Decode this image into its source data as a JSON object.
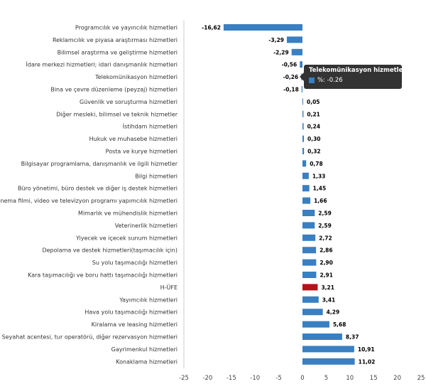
{
  "chart_data": {
    "type": "bar",
    "orientation": "horizontal",
    "categories": [
      "Programcılık ve yayıncılık hizmetleri",
      "Reklamcılık ve piyasa araştırması hizmetleri",
      "Bilimsel araştırma ve geliştirme hizmetleri",
      "İdare merkezi hizmetleri; idari danışmanlık hizmetleri",
      "Telekomünikasyon hizmetleri",
      "Bina ve çevre düzenleme (peyzaj) hizmetleri",
      "Güvenlik ve soruşturma hizmetleri",
      "Diğer mesleki, bilimsel ve teknik hizmetler",
      "İstihdam hizmetleri",
      "Hukuk ve muhasebe hizmetleri",
      "Posta ve kurye hizmetleri",
      "Bilgisayar programlama, danışmanlık ve ilgili hizmetler",
      "Bilgi hizmetleri",
      "Büro yönetimi, büro destek ve diğer iş destek hizmetleri",
      "Sinema filmi, video ve televizyon programı yapımcılık hizmetleri",
      "Mimarlık ve mühendislik hizmetleri",
      "Veterinerlik hizmetleri",
      "Yiyecek ve içecek sunum hizmetleri",
      "Depolama ve destek hizmetleri(taşımacılık için)",
      "Su yolu taşımacılığı hizmetleri",
      "Kara taşımacılığı ve boru hattı taşımacılığı hizmetleri",
      "H-ÜFE",
      "Yayımcılık hizmetleri",
      "Hava yolu taşımacılığı hizmetleri",
      "Kiralama ve leasing hizmetleri",
      "Seyahat acentesi, tur operatörü, diğer rezervasyon hizmetleri",
      "Gayrimenkul hizmetleri",
      "Konaklama hizmetleri"
    ],
    "values": [
      -16.62,
      -3.29,
      -2.29,
      -0.56,
      -0.26,
      -0.18,
      0.05,
      0.21,
      0.24,
      0.3,
      0.32,
      0.78,
      1.33,
      1.45,
      1.66,
      2.59,
      2.59,
      2.72,
      2.86,
      2.9,
      2.91,
      3.21,
      3.41,
      4.29,
      5.68,
      8.37,
      10.91,
      11.02
    ],
    "value_labels": [
      "-16,62",
      "-3,29",
      "-2,29",
      "-0,56",
      "-0,26",
      "-0,18",
      "0,05",
      "0,21",
      "0,24",
      "0,30",
      "0,32",
      "0,78",
      "1,33",
      "1,45",
      "1,66",
      "2,59",
      "2,59",
      "2,72",
      "2,86",
      "2,90",
      "2,91",
      "3,21",
      "3,41",
      "4,29",
      "5,68",
      "8,37",
      "10,91",
      "11,02"
    ],
    "highlight_index": 21,
    "xlim": [
      -25,
      25
    ],
    "xticks": [
      -25,
      -20,
      -15,
      -10,
      -5,
      0,
      5,
      10,
      15,
      20,
      25
    ],
    "grid": false,
    "colors": {
      "bar": "#3a7fc1",
      "highlight": "#b5121b",
      "axis": "#cccccc"
    }
  },
  "tooltip": {
    "title": "Telekomünikasyon hizmetleri",
    "row": "%: -0.26",
    "color": "#3a7fc1"
  }
}
